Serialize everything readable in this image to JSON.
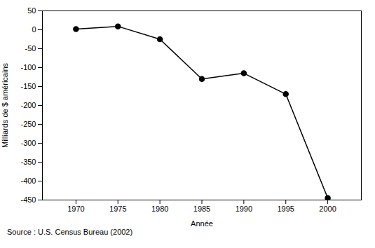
{
  "chart_data": {
    "type": "line",
    "x": [
      1970,
      1975,
      1980,
      1985,
      1990,
      1995,
      2000
    ],
    "values": [
      2,
      9,
      -25,
      -130,
      -115,
      -170,
      -445
    ],
    "xlabel": "Année",
    "ylabel": "Milliards de $ américains",
    "xlim": [
      1966,
      2004
    ],
    "xticks": [
      1970,
      1975,
      1980,
      1985,
      1990,
      1995,
      2000
    ],
    "ylim": [
      -450,
      50
    ],
    "yticks": [
      50,
      0,
      -50,
      -100,
      -150,
      -200,
      -250,
      -300,
      -350,
      -400,
      -450
    ],
    "color": "#000000",
    "marker": "o",
    "grid": false,
    "caption": "Source : U.S. Census Bureau (2002)"
  }
}
